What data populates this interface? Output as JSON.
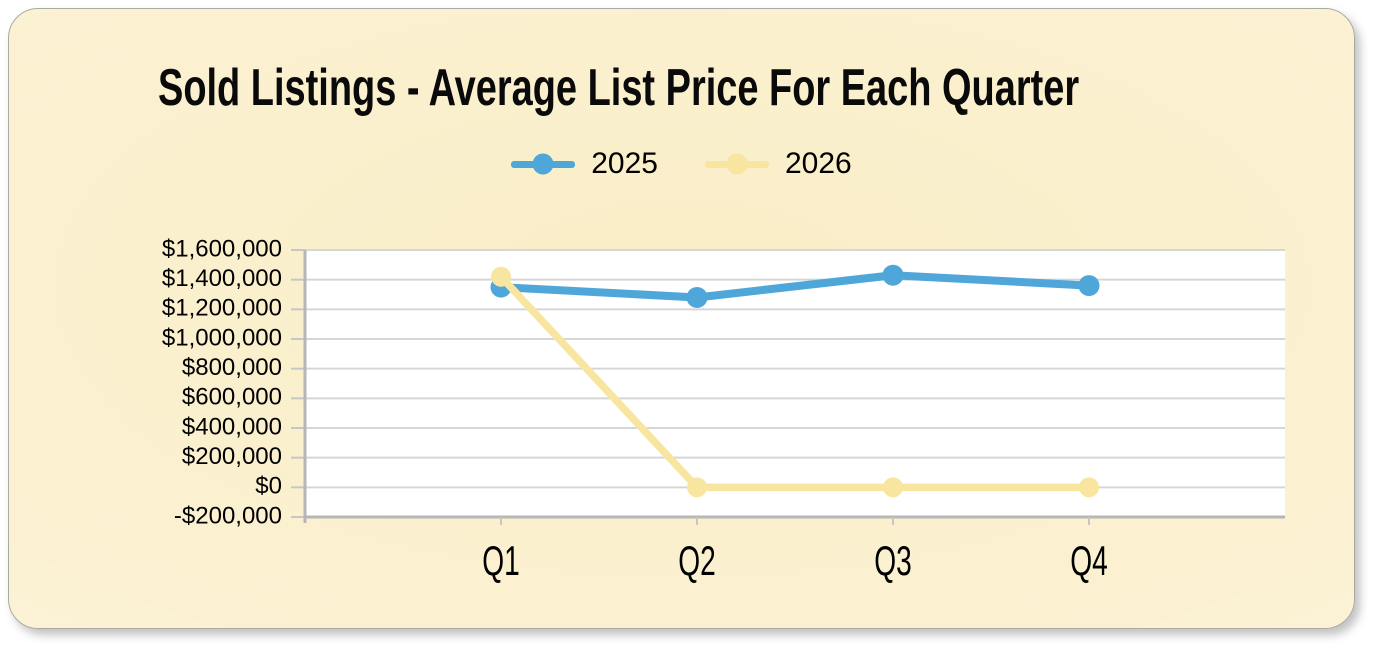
{
  "title": "Sold Listings - Average List Price For Each Quarter",
  "panel": {
    "background_center": "#faeec7",
    "background_edge": "#fdf8e9",
    "border_color": "#aaaaa5"
  },
  "chart_data": {
    "type": "line",
    "title": "Sold Listings - Average List Price For Each Quarter",
    "categories": [
      "Q1",
      "Q2",
      "Q3",
      "Q4"
    ],
    "series": [
      {
        "name": "2025",
        "color": "#4fa7d9",
        "values": [
          1350000,
          1280000,
          1430000,
          1360000
        ]
      },
      {
        "name": "2026",
        "color": "#f8e5a0",
        "values": [
          1420000,
          0,
          0,
          0
        ]
      }
    ],
    "ylim": [
      -200000,
      1600000
    ],
    "ytick_step": 200000,
    "ytick_labels": [
      "$1,600,000",
      "$1,400,000",
      "$1,200,000",
      "$1,000,000",
      "$800,000",
      "$600,000",
      "$400,000",
      "$200,000",
      "$0",
      "-$200,000"
    ],
    "xlabel": "",
    "ylabel": "",
    "grid": true,
    "legend_position": "top-center",
    "plot_background": "#ffffff",
    "gridline_color": "#d6d6d6",
    "axis_color": "#b6b6b6",
    "tick_color": "#c6c6c6",
    "text_color": "#000000"
  }
}
